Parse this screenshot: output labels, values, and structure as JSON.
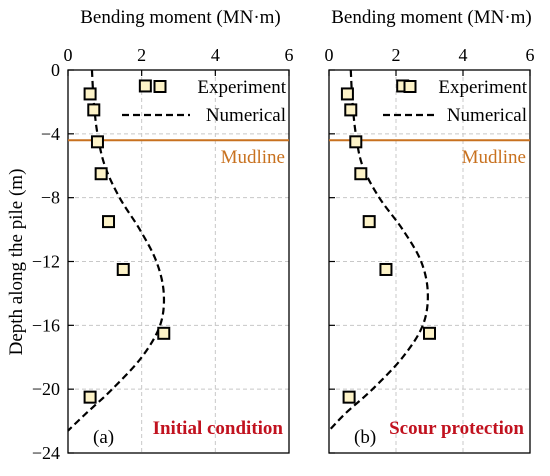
{
  "chart_data": [
    {
      "type": "scatter",
      "panel_label": "(a)",
      "condition_label": "Initial condition",
      "xlabel": "Bending moment (MN·m)",
      "ylabel": "Depth along the pile (m)",
      "xlim": [
        0,
        6
      ],
      "ylim": [
        -24,
        0
      ],
      "xticks": [
        "0",
        "2",
        "4",
        "6"
      ],
      "yticks": [
        "0",
        "−4",
        "−8",
        "−12",
        "−16",
        "−20",
        "−24"
      ],
      "grid": true,
      "legend_position": "top-right",
      "mudline": {
        "label": "Mudline",
        "depth": -4.4,
        "color": "#c8711f"
      },
      "condition_color": "#c1121f",
      "series": [
        {
          "name": "Experiment",
          "kind": "markers",
          "marker_fill": "#fdf3c8",
          "points": [
            [
              2.1,
              -1.0
            ],
            [
              0.6,
              -1.5
            ],
            [
              0.7,
              -2.5
            ],
            [
              0.8,
              -4.5
            ],
            [
              0.9,
              -6.5
            ],
            [
              1.1,
              -9.5
            ],
            [
              1.5,
              -12.5
            ],
            [
              2.6,
              -16.5
            ],
            [
              0.6,
              -20.5
            ]
          ]
        },
        {
          "name": "Numerical",
          "kind": "dashed-line",
          "points": [
            [
              0.65,
              0
            ],
            [
              0.7,
              -2
            ],
            [
              0.8,
              -4
            ],
            [
              1.0,
              -6
            ],
            [
              1.4,
              -8
            ],
            [
              1.95,
              -10
            ],
            [
              2.4,
              -12
            ],
            [
              2.6,
              -14
            ],
            [
              2.5,
              -16
            ],
            [
              2.0,
              -18
            ],
            [
              1.2,
              -20
            ],
            [
              0.5,
              -21.5
            ],
            [
              0.0,
              -22.6
            ]
          ]
        }
      ]
    },
    {
      "type": "scatter",
      "panel_label": "(b)",
      "condition_label": "Scour protection",
      "xlabel": "Bending moment (MN·m)",
      "xlim": [
        0,
        6
      ],
      "ylim": [
        -24,
        0
      ],
      "xticks": [
        "0",
        "2",
        "4",
        "6"
      ],
      "grid": true,
      "legend_position": "top-right",
      "mudline": {
        "label": "Mudline",
        "depth": -4.4,
        "color": "#c8711f"
      },
      "condition_color": "#c1121f",
      "series": [
        {
          "name": "Experiment",
          "kind": "markers",
          "marker_fill": "#fdf3c8",
          "points": [
            [
              2.2,
              -1.0
            ],
            [
              0.55,
              -1.5
            ],
            [
              0.65,
              -2.5
            ],
            [
              0.8,
              -4.5
            ],
            [
              0.95,
              -6.5
            ],
            [
              1.2,
              -9.5
            ],
            [
              1.7,
              -12.5
            ],
            [
              3.0,
              -16.5
            ],
            [
              0.6,
              -20.5
            ]
          ]
        },
        {
          "name": "Numerical",
          "kind": "dashed-line",
          "points": [
            [
              0.65,
              0
            ],
            [
              0.7,
              -2
            ],
            [
              0.8,
              -4
            ],
            [
              1.0,
              -6
            ],
            [
              1.5,
              -8
            ],
            [
              2.2,
              -10
            ],
            [
              2.75,
              -12
            ],
            [
              2.95,
              -14
            ],
            [
              2.8,
              -16
            ],
            [
              2.2,
              -18
            ],
            [
              1.3,
              -20
            ],
            [
              0.5,
              -21.5
            ],
            [
              0.0,
              -22.6
            ]
          ]
        }
      ]
    }
  ]
}
